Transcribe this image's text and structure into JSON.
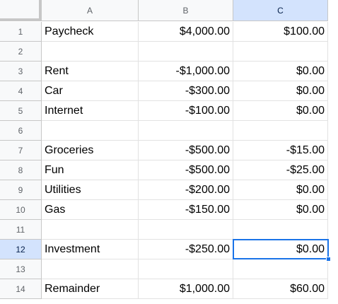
{
  "columns": [
    "A",
    "B",
    "C"
  ],
  "active_column": "C",
  "active_row": 12,
  "rows": [
    {
      "n": "1",
      "a": "Paycheck",
      "b": "$4,000.00",
      "c": "$100.00"
    },
    {
      "n": "2",
      "a": "",
      "b": "",
      "c": ""
    },
    {
      "n": "3",
      "a": "Rent",
      "b": "-$1,000.00",
      "c": "$0.00"
    },
    {
      "n": "4",
      "a": "Car",
      "b": "-$300.00",
      "c": "$0.00"
    },
    {
      "n": "5",
      "a": "Internet",
      "b": "-$100.00",
      "c": "$0.00"
    },
    {
      "n": "6",
      "a": "",
      "b": "",
      "c": ""
    },
    {
      "n": "7",
      "a": "Groceries",
      "b": "-$500.00",
      "c": "-$15.00"
    },
    {
      "n": "8",
      "a": "Fun",
      "b": "-$500.00",
      "c": "-$25.00"
    },
    {
      "n": "9",
      "a": "Utilities",
      "b": "-$200.00",
      "c": "$0.00"
    },
    {
      "n": "10",
      "a": "Gas",
      "b": "-$150.00",
      "c": "$0.00"
    },
    {
      "n": "11",
      "a": "",
      "b": "",
      "c": ""
    },
    {
      "n": "12",
      "a": "Investment",
      "b": "-$250.00",
      "c": "$0.00"
    },
    {
      "n": "13",
      "a": "",
      "b": "",
      "c": ""
    },
    {
      "n": "14",
      "a": "Remainder",
      "b": "$1,000.00",
      "c": "$60.00"
    }
  ]
}
